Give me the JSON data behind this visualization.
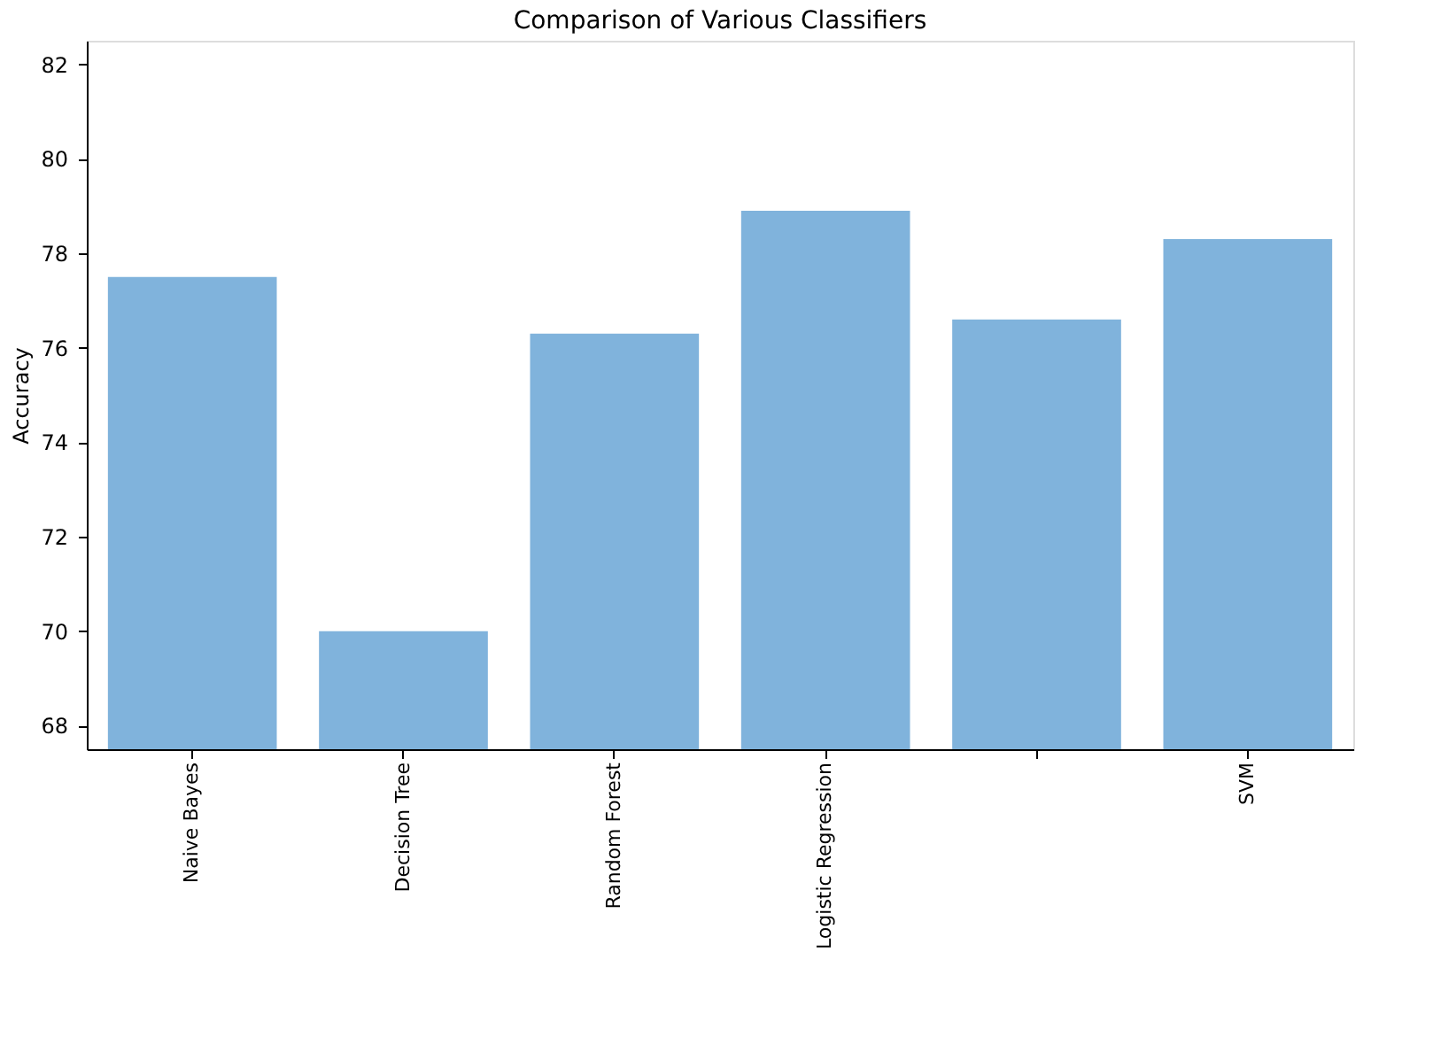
{
  "chart_data": {
    "type": "bar",
    "title": "Comparison of Various Classifiers",
    "ylabel": "Accuracy",
    "categories": [
      "Naive Bayes",
      "Decision Tree",
      "Random Forest",
      "Logistic Regression",
      null,
      "SVM"
    ],
    "values": [
      77.5,
      70.0,
      76.3,
      78.9,
      76.6,
      78.3
    ],
    "color": "#80b3dc",
    "ylim": [
      67.5,
      82.5
    ],
    "yticks": [
      68,
      70,
      72,
      74,
      76,
      78,
      80,
      82
    ],
    "grid": false
  }
}
